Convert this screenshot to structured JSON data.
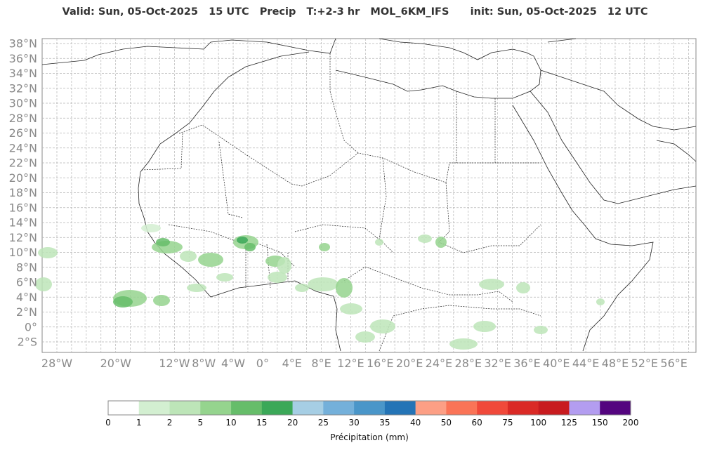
{
  "header": {
    "title": "Valid: Sun, 05-Oct-2025   15 UTC   Precip   T:+2-3 hr   MOL_6KM_IFS      init: Sun, 05-Oct-2025   12 UTC"
  },
  "map": {
    "lat_labels": [
      "38°N",
      "36°N",
      "34°N",
      "32°N",
      "30°N",
      "28°N",
      "26°N",
      "24°N",
      "22°N",
      "20°N",
      "18°N",
      "16°N",
      "14°N",
      "12°N",
      "10°N",
      "8°N",
      "6°N",
      "4°N",
      "2°N",
      "0°",
      "2°S"
    ],
    "lon_labels": [
      "28°W",
      "20°W",
      "12°W",
      "8°W",
      "4°W",
      "0°",
      "4°E",
      "8°E",
      "12°E",
      "16°E",
      "20°E",
      "24°E",
      "28°E",
      "32°E",
      "36°E",
      "40°E",
      "44°E",
      "48°E",
      "52°E",
      "56°E"
    ]
  },
  "colorbar": {
    "label": "Précipitation (mm)",
    "ticks": [
      "0",
      "1",
      "2",
      "5",
      "10",
      "15",
      "20",
      "25",
      "30",
      "35",
      "40",
      "50",
      "60",
      "75",
      "100",
      "125",
      "150",
      "200"
    ],
    "colors": [
      "#ffffff",
      "#d3efd1",
      "#bde5b8",
      "#95d48e",
      "#66bd6a",
      "#3ba858",
      "#a6cee4",
      "#74b0da",
      "#4a96c9",
      "#2474b6",
      "#fc9f85",
      "#fa7457",
      "#f0493a",
      "#da2a26",
      "#c81b1f",
      "#b39df0",
      "#54057f"
    ]
  }
}
